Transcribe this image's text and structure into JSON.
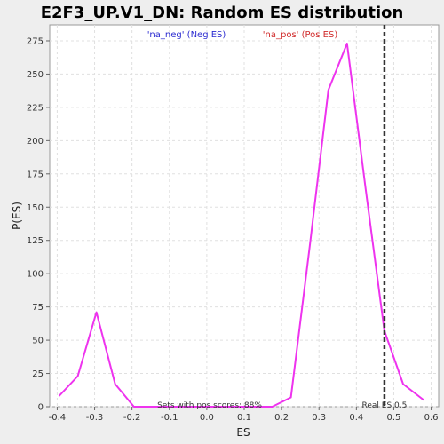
{
  "chart_data": {
    "type": "line",
    "title": "E2F3_UP.V1_DN: Random ES distribution",
    "xlabel": "ES",
    "ylabel": "P(ES)",
    "xlim": [
      -0.42,
      0.62
    ],
    "ylim": [
      0,
      287
    ],
    "x_ticks": [
      "-0.4",
      "-0.3",
      "-0.2",
      "-0.1",
      "0.0",
      "0.1",
      "0.2",
      "0.3",
      "0.4",
      "0.5",
      "0.6"
    ],
    "y_ticks": [
      "0",
      "25",
      "50",
      "75",
      "100",
      "125",
      "150",
      "175",
      "200",
      "225",
      "250",
      "275"
    ],
    "grid": true,
    "legend": {
      "neg": "'na_neg' (Neg ES)",
      "pos": "'na_pos' (Pos ES)",
      "placement": "top"
    },
    "series": [
      {
        "color": "#ee33ee",
        "x": [
          -0.395,
          -0.345,
          -0.295,
          -0.245,
          -0.195,
          -0.145,
          -0.095,
          -0.045,
          0.005,
          0.055,
          0.105,
          0.125,
          0.175,
          0.225,
          0.275,
          0.325,
          0.375,
          0.425,
          0.475,
          0.525,
          0.58
        ],
        "y": [
          8,
          23,
          71,
          17,
          0,
          0,
          0,
          0,
          0,
          0,
          0,
          0,
          0,
          7,
          120,
          238,
          273,
          163,
          57,
          17,
          5
        ]
      }
    ],
    "real_es": {
      "x": 0.475,
      "label": "Real ES 0.5",
      "color": "#333333"
    },
    "annotation": "Sets with pos scores: 88%"
  }
}
